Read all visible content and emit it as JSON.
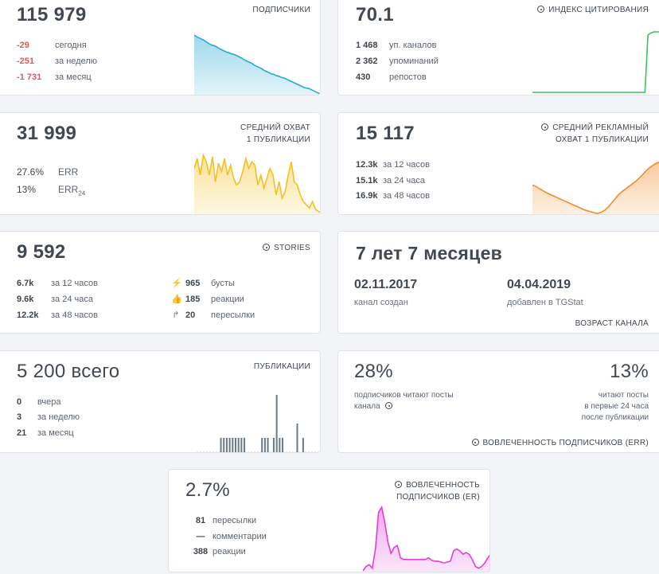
{
  "subscribers": {
    "value": "115 979",
    "label": "ПОДПИСЧИКИ",
    "rows": [
      {
        "v": "-29",
        "t": "сегодня"
      },
      {
        "v": "-251",
        "t": "за неделю"
      },
      {
        "v": "-1 731",
        "t": "за месяц"
      }
    ],
    "trend": [
      100,
      97,
      95,
      93,
      91,
      88,
      85,
      83,
      82,
      80,
      77,
      75,
      73,
      71,
      70,
      68,
      67,
      65,
      63,
      61,
      58,
      56,
      54,
      52,
      49,
      47,
      45,
      43,
      40,
      38,
      36,
      34,
      33,
      31,
      30,
      28,
      27,
      25,
      23,
      21,
      19,
      17,
      15,
      13,
      11,
      10,
      9,
      7,
      5,
      3,
      1,
      0
    ],
    "color": "#29a8d4"
  },
  "citation": {
    "value": "70.1",
    "label": "ИНДЕКС ЦИТИРОВАНИЯ",
    "rows": [
      {
        "v": "1 468",
        "t": "уп. каналов"
      },
      {
        "v": "2 362",
        "t": "упоминаний"
      },
      {
        "v": "430",
        "t": "репостов"
      }
    ],
    "trend": [
      0,
      0,
      0,
      0,
      0,
      0,
      0,
      0,
      0,
      0,
      0,
      0,
      0,
      0,
      0,
      0,
      0,
      0,
      0,
      0,
      0,
      0,
      0,
      0,
      0,
      0,
      0,
      0,
      0,
      0,
      0,
      0,
      0,
      0,
      0,
      0,
      0,
      0,
      0,
      95,
      98,
      100,
      100,
      100
    ],
    "color": "#3cc15b"
  },
  "reach": {
    "value": "31 999",
    "label1": "СРЕДНИЙ ОХВАТ",
    "label2": "1 ПУБЛИКАЦИИ",
    "rows": [
      {
        "v": "27.6%",
        "t": "ERR"
      },
      {
        "v": "13%",
        "t": "ERR",
        "sub": "24"
      }
    ],
    "trend": [
      80,
      95,
      70,
      100,
      90,
      70,
      98,
      60,
      88,
      75,
      95,
      70,
      85,
      65,
      55,
      60,
      75,
      95,
      80,
      90,
      85,
      55,
      70,
      50,
      65,
      80,
      70,
      40,
      60,
      35,
      45,
      70,
      90,
      60,
      55,
      40,
      30,
      25,
      20,
      30,
      18,
      15,
      12
    ],
    "color": "#f4c020"
  },
  "ad_reach": {
    "value": "15 117",
    "label1": "СРЕДНИЙ РЕКЛАМНЫЙ",
    "label2": "ОХВАТ 1 ПУБЛИКАЦИИ",
    "rows": [
      {
        "v": "12.3k",
        "t": "за 12 часов"
      },
      {
        "v": "15.1k",
        "t": "за 24 часа"
      },
      {
        "v": "16.9k",
        "t": "за 48 часов"
      }
    ],
    "trend": [
      55,
      52,
      48,
      44,
      40,
      37,
      34,
      31,
      28,
      25,
      22,
      19,
      16,
      13,
      10,
      7,
      5,
      3,
      1,
      0,
      2,
      6,
      12,
      20,
      28,
      36,
      42,
      47,
      52,
      57,
      62,
      68,
      75,
      82,
      88,
      93,
      97,
      100
    ],
    "color": "#f08c2a"
  },
  "stories": {
    "value": "9 592",
    "label": "STORIES",
    "rows_left": [
      {
        "v": "6.7k",
        "t": "за 12 часов"
      },
      {
        "v": "9.6k",
        "t": "за 24 часа"
      },
      {
        "v": "12.2k",
        "t": "за 48 часов"
      }
    ],
    "rows_right": [
      {
        "icon": "⚡",
        "icon_name": "lightning-icon",
        "v": "965",
        "t": "бусты"
      },
      {
        "icon": "👍",
        "icon_name": "thumbs-up-icon",
        "v": "185",
        "t": "реакции"
      },
      {
        "icon": "↱",
        "icon_name": "share-arrow-icon",
        "v": "20",
        "t": "пересылки"
      }
    ]
  },
  "age": {
    "value": "7 лет 7 месяцев",
    "created_date": "02.11.2017",
    "created_label": "канал создан",
    "added_date": "04.04.2019",
    "added_label": "добавлен в TGStat",
    "label": "ВОЗРАСТ КАНАЛА"
  },
  "publications": {
    "value": "5 200 всего",
    "label": "ПУБЛИКАЦИИ",
    "rows": [
      {
        "v": "0",
        "t": "вчера"
      },
      {
        "v": "3",
        "t": "за неделю"
      },
      {
        "v": "21",
        "t": "за месяц"
      }
    ],
    "bars": [
      0,
      0,
      0,
      0,
      0,
      0,
      0,
      0,
      1,
      1,
      1,
      1,
      1,
      1,
      1,
      1,
      1,
      0,
      0,
      0,
      0,
      0,
      1,
      1,
      1,
      0,
      1,
      4,
      1,
      1,
      0,
      0,
      0,
      0,
      2,
      0,
      1,
      0,
      0,
      0,
      0,
      0
    ],
    "color": "#6c7a89"
  },
  "engagement_err": {
    "left_value": "28%",
    "left_text1": "подписчиков читают посты",
    "left_text2": "канала",
    "right_value": "13%",
    "right_text1": "читают посты",
    "right_text2": "в первые 24 часа",
    "right_text3": "после публикации",
    "label": "ВОВЛЕЧЕННОСТЬ ПОДПИСЧИКОВ (ERR)"
  },
  "engagement_er": {
    "value": "2.7%",
    "label1": "ВОВЛЕЧЕННОСТЬ",
    "label2": "ПОДПИСЧИКОВ (ER)",
    "rows": [
      {
        "v": "81",
        "t": "пересылки"
      },
      {
        "v": "—",
        "t": "комментарии"
      },
      {
        "v": "388",
        "t": "реакции"
      }
    ],
    "trend": [
      5,
      10,
      12,
      8,
      30,
      72,
      78,
      60,
      38,
      25,
      32,
      34,
      20,
      18,
      18,
      18,
      18,
      18,
      18,
      18,
      18,
      20,
      17,
      16,
      16,
      15,
      14,
      15,
      16,
      28,
      30,
      28,
      24,
      26,
      24,
      18,
      10,
      8,
      10,
      14,
      20,
      25
    ],
    "color": "#e23fd9"
  }
}
